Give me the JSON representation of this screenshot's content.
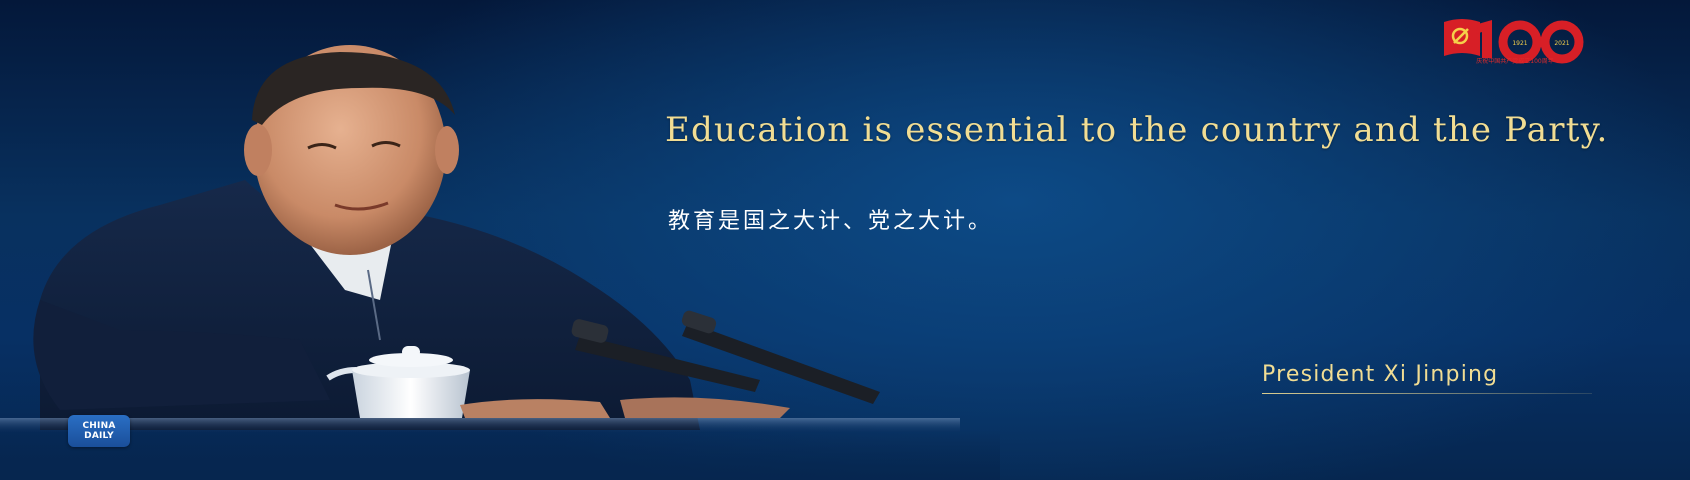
{
  "quote": {
    "english": "Education is essential to the country and the Party.",
    "chinese": "教育是国之大计、党之大计。"
  },
  "attribution": "President Xi Jinping",
  "emblem": {
    "number": "100",
    "year_start": "1921",
    "year_end": "2021",
    "caption": "庆祝中国共产党成立100周年"
  },
  "logo": {
    "line1": "CHINA",
    "line2": "DAILY"
  },
  "colors": {
    "quote_gold": "#f1dd93",
    "background_navy": "#08315f",
    "emblem_red": "#e02b2b"
  }
}
